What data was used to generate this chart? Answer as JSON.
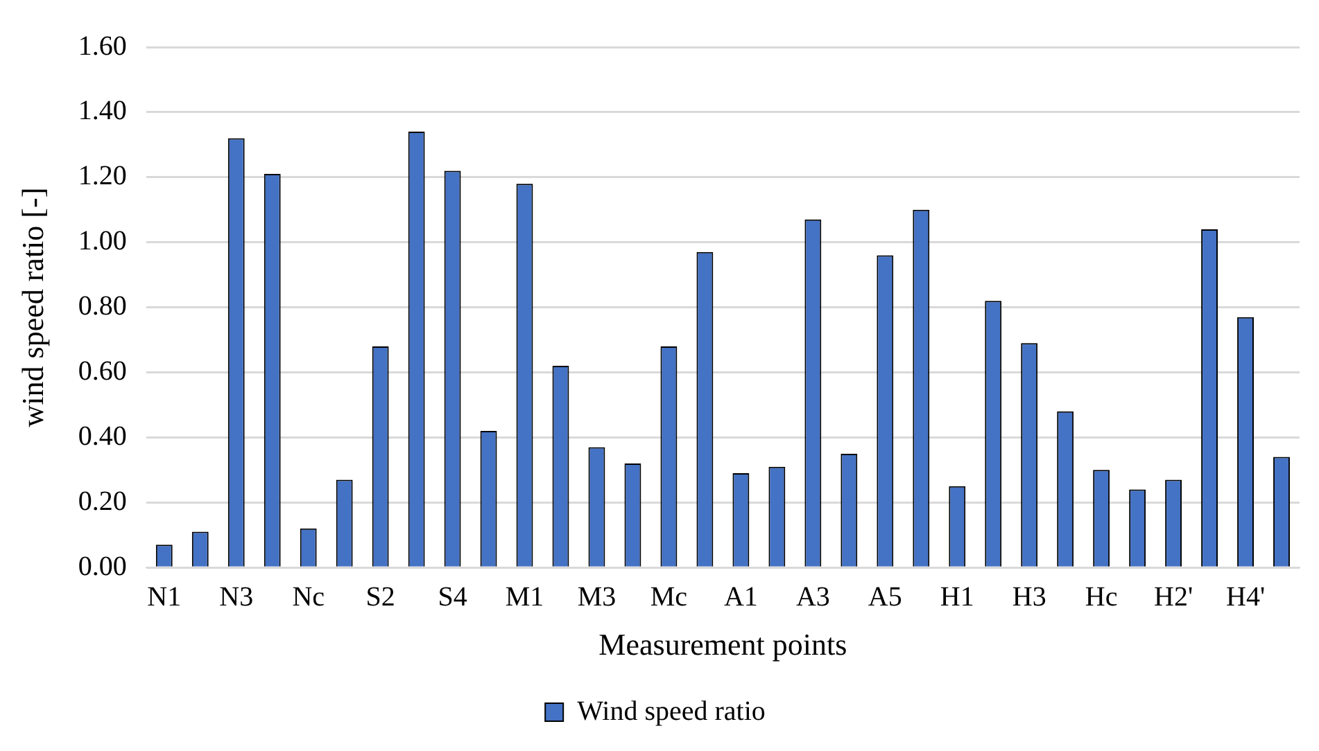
{
  "chart_data": {
    "type": "bar",
    "xlabel": "Measurement points",
    "ylabel": "wind speed ratio [-]",
    "categories": [
      "N1",
      null,
      "N3",
      null,
      "Nc",
      null,
      "S2",
      null,
      "S4",
      null,
      "M1",
      null,
      "M3",
      null,
      "Mc",
      null,
      "A1",
      null,
      "A3",
      null,
      "A5",
      null,
      "H1",
      null,
      "H3",
      null,
      "Hc",
      null,
      "H2'",
      null,
      "H4'",
      null
    ],
    "series": [
      {
        "name": "Wind speed ratio",
        "color": "#4472c4",
        "values": [
          0.07,
          0.11,
          1.32,
          1.21,
          0.12,
          0.27,
          0.68,
          1.34,
          1.22,
          0.42,
          1.18,
          0.62,
          0.37,
          0.32,
          0.68,
          0.97,
          0.29,
          0.31,
          1.07,
          0.35,
          0.96,
          1.1,
          0.25,
          0.82,
          0.69,
          0.48,
          0.3,
          0.24,
          0.27,
          1.04,
          0.77,
          0.34
        ]
      }
    ],
    "ylim": [
      0,
      1.6
    ],
    "yticks": [
      {
        "value": 0,
        "label": "0.00"
      },
      {
        "value": 0.2,
        "label": "0.20"
      },
      {
        "value": 0.4,
        "label": "0.40"
      },
      {
        "value": 0.6,
        "label": "0.60"
      },
      {
        "value": 0.8,
        "label": "0.80"
      },
      {
        "value": 1,
        "label": "1.00"
      },
      {
        "value": 1.2,
        "label": "1.20"
      },
      {
        "value": 1.4,
        "label": "1.40"
      },
      {
        "value": 1.6,
        "label": "1.60"
      }
    ],
    "grid": "y",
    "legend": "bottom"
  }
}
